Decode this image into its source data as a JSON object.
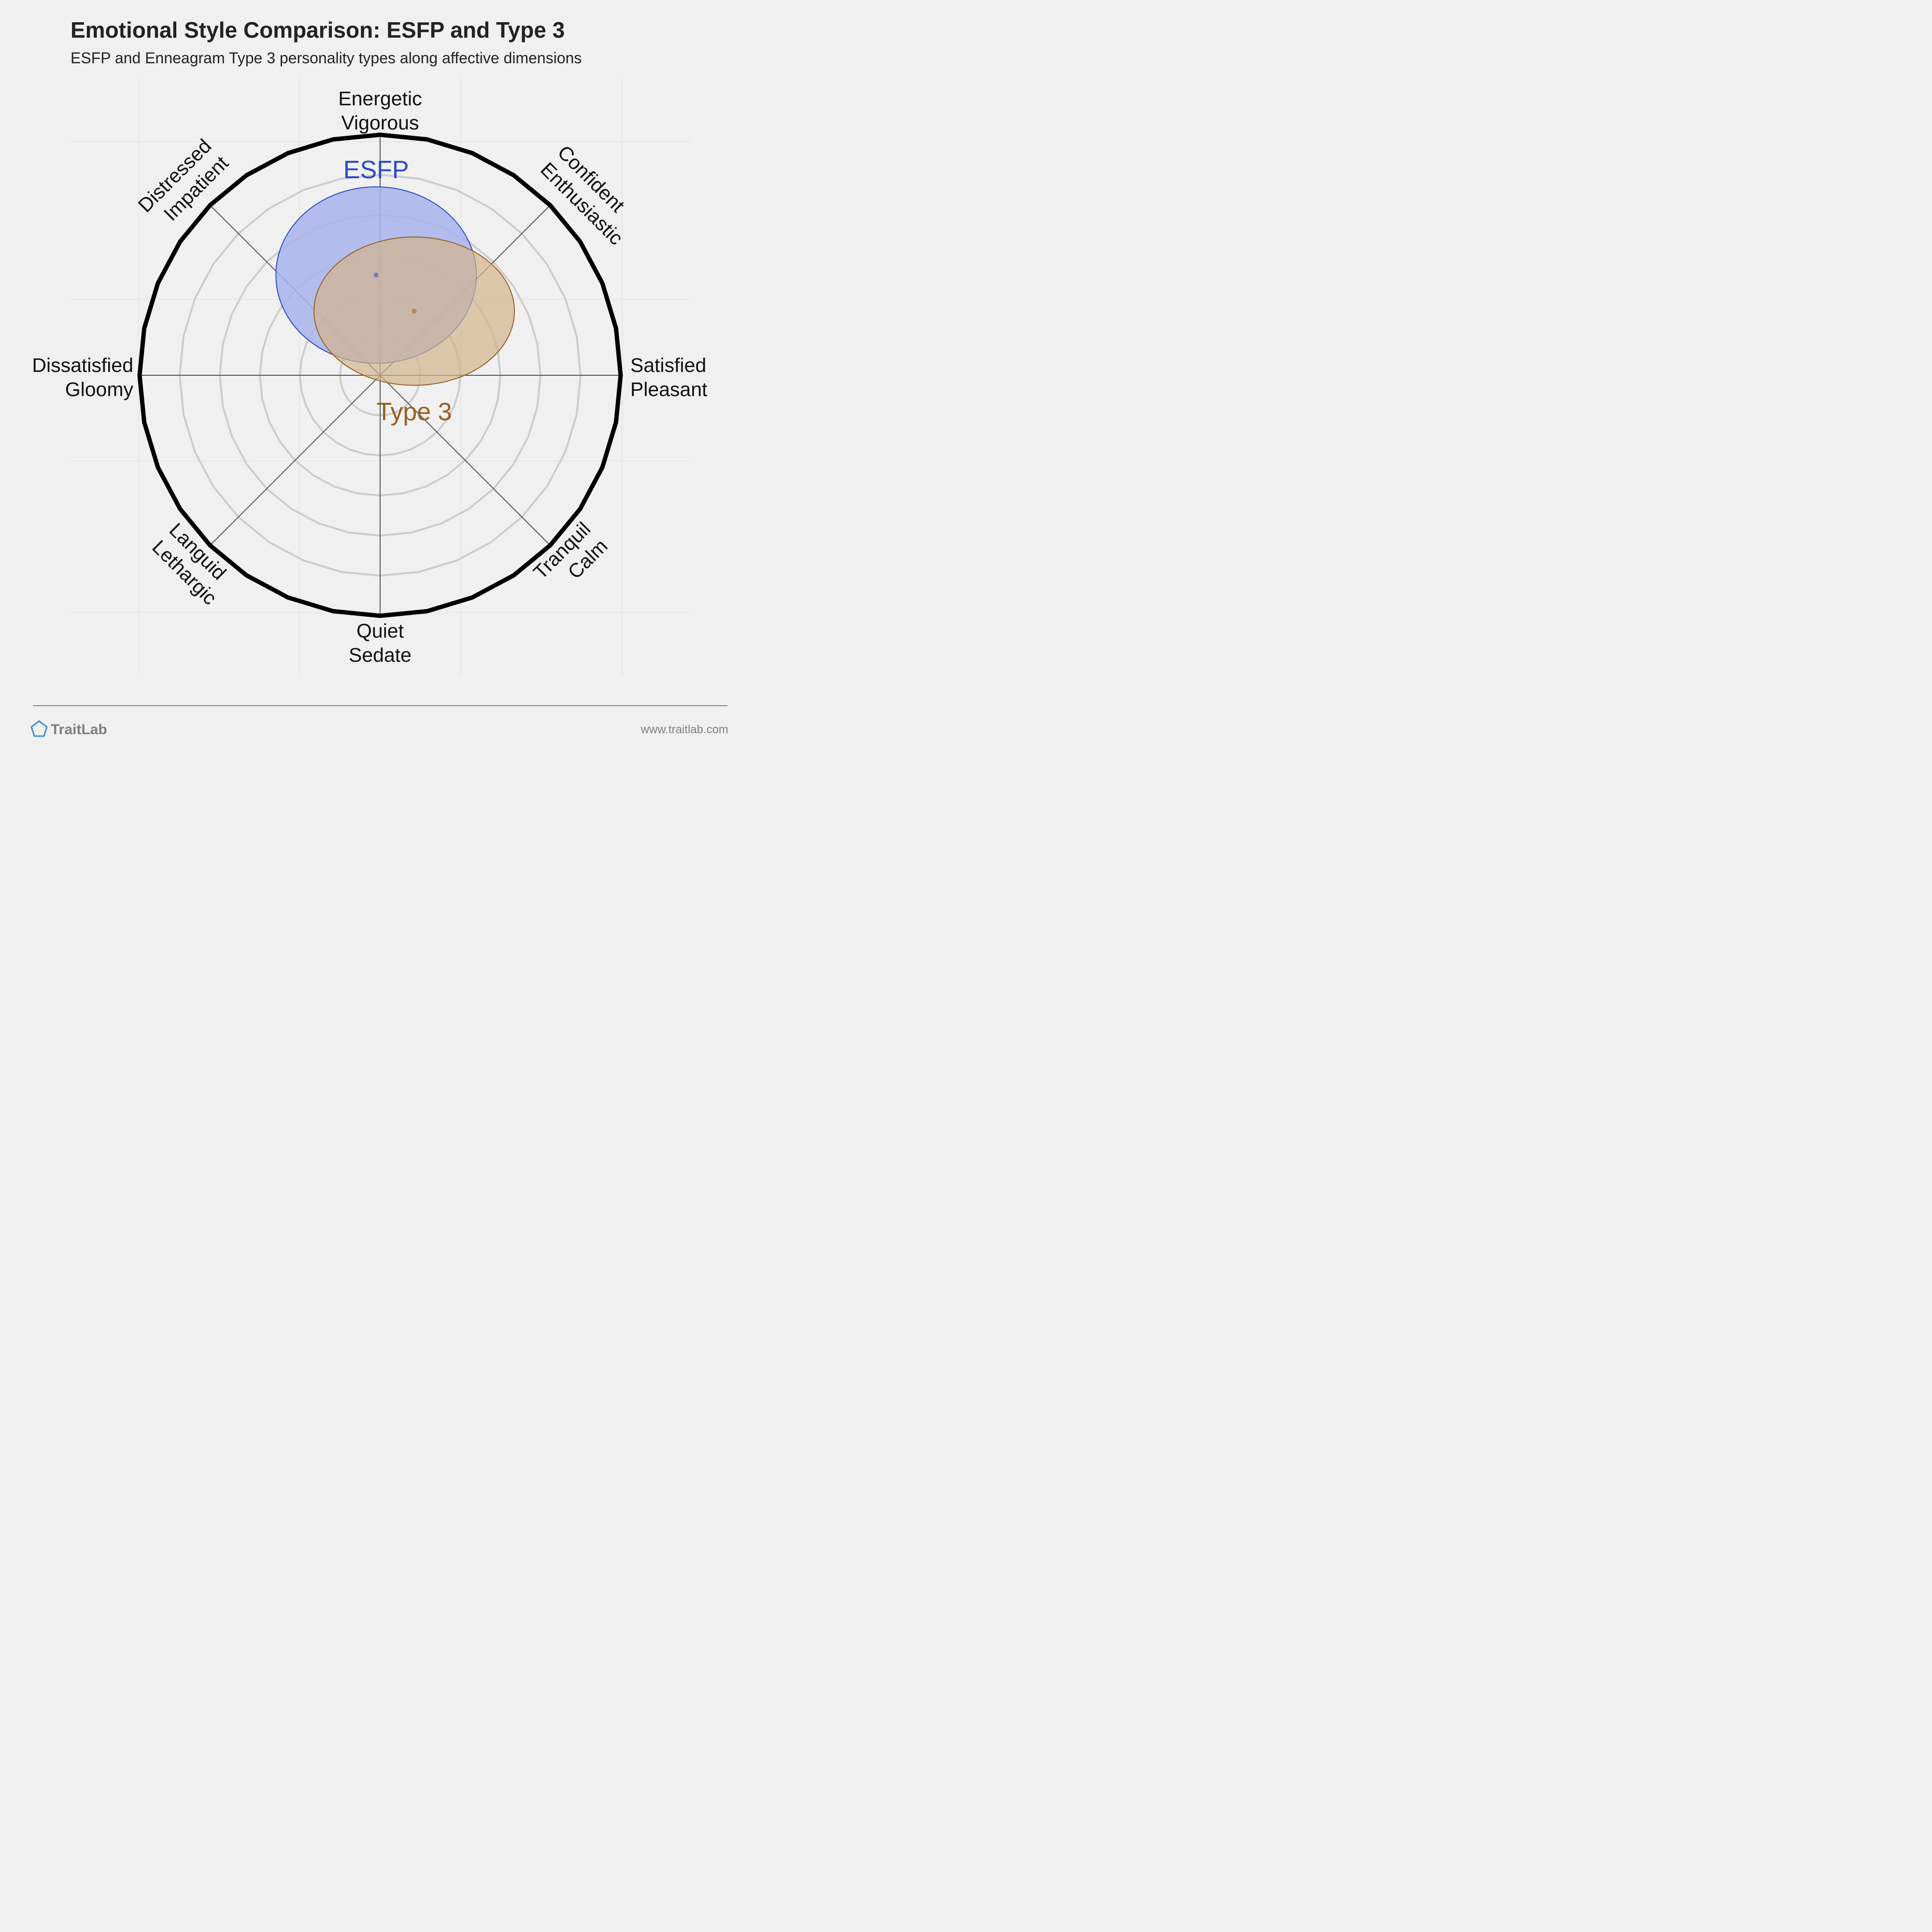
{
  "chart_data": {
    "type": "scatter",
    "title": "Emotional Style Comparison: ESFP and Type 3",
    "subtitle": "ESFP and Enneagram Type 3 personality types along affective dimensions",
    "axes": {
      "x": {
        "neg": [
          "Dissatisfied",
          "Gloomy"
        ],
        "pos": [
          "Satisfied",
          "Pleasant"
        ]
      },
      "y": {
        "pos": [
          "Energetic",
          "Vigorous"
        ],
        "neg": [
          "Quiet",
          "Sedate"
        ]
      },
      "diag_ne": [
        "Confident",
        "Enthusiastic"
      ],
      "diag_nw": [
        "Distressed",
        "Impatient"
      ],
      "diag_sw": [
        "Languid",
        "Lethargic"
      ],
      "diag_se": [
        "Tranquil",
        "Calm"
      ]
    },
    "xlim": [
      -6,
      6
    ],
    "ylim": [
      -6,
      6
    ],
    "rings": [
      1,
      2,
      3,
      4,
      5
    ],
    "series": [
      {
        "name": "ESFP",
        "x": -0.1,
        "y": 2.5,
        "spread_x": 2.5,
        "spread_y": 2.2,
        "color": "#2c4ac8",
        "fill": "#a8b4ec"
      },
      {
        "name": "Type 3",
        "x": 0.85,
        "y": 1.6,
        "spread_x": 2.5,
        "spread_y": 1.85,
        "color": "#9a6120",
        "fill": "#d3b48b"
      }
    ]
  },
  "brand": {
    "name": "TraitLab",
    "url": "www.traitlab.com"
  }
}
